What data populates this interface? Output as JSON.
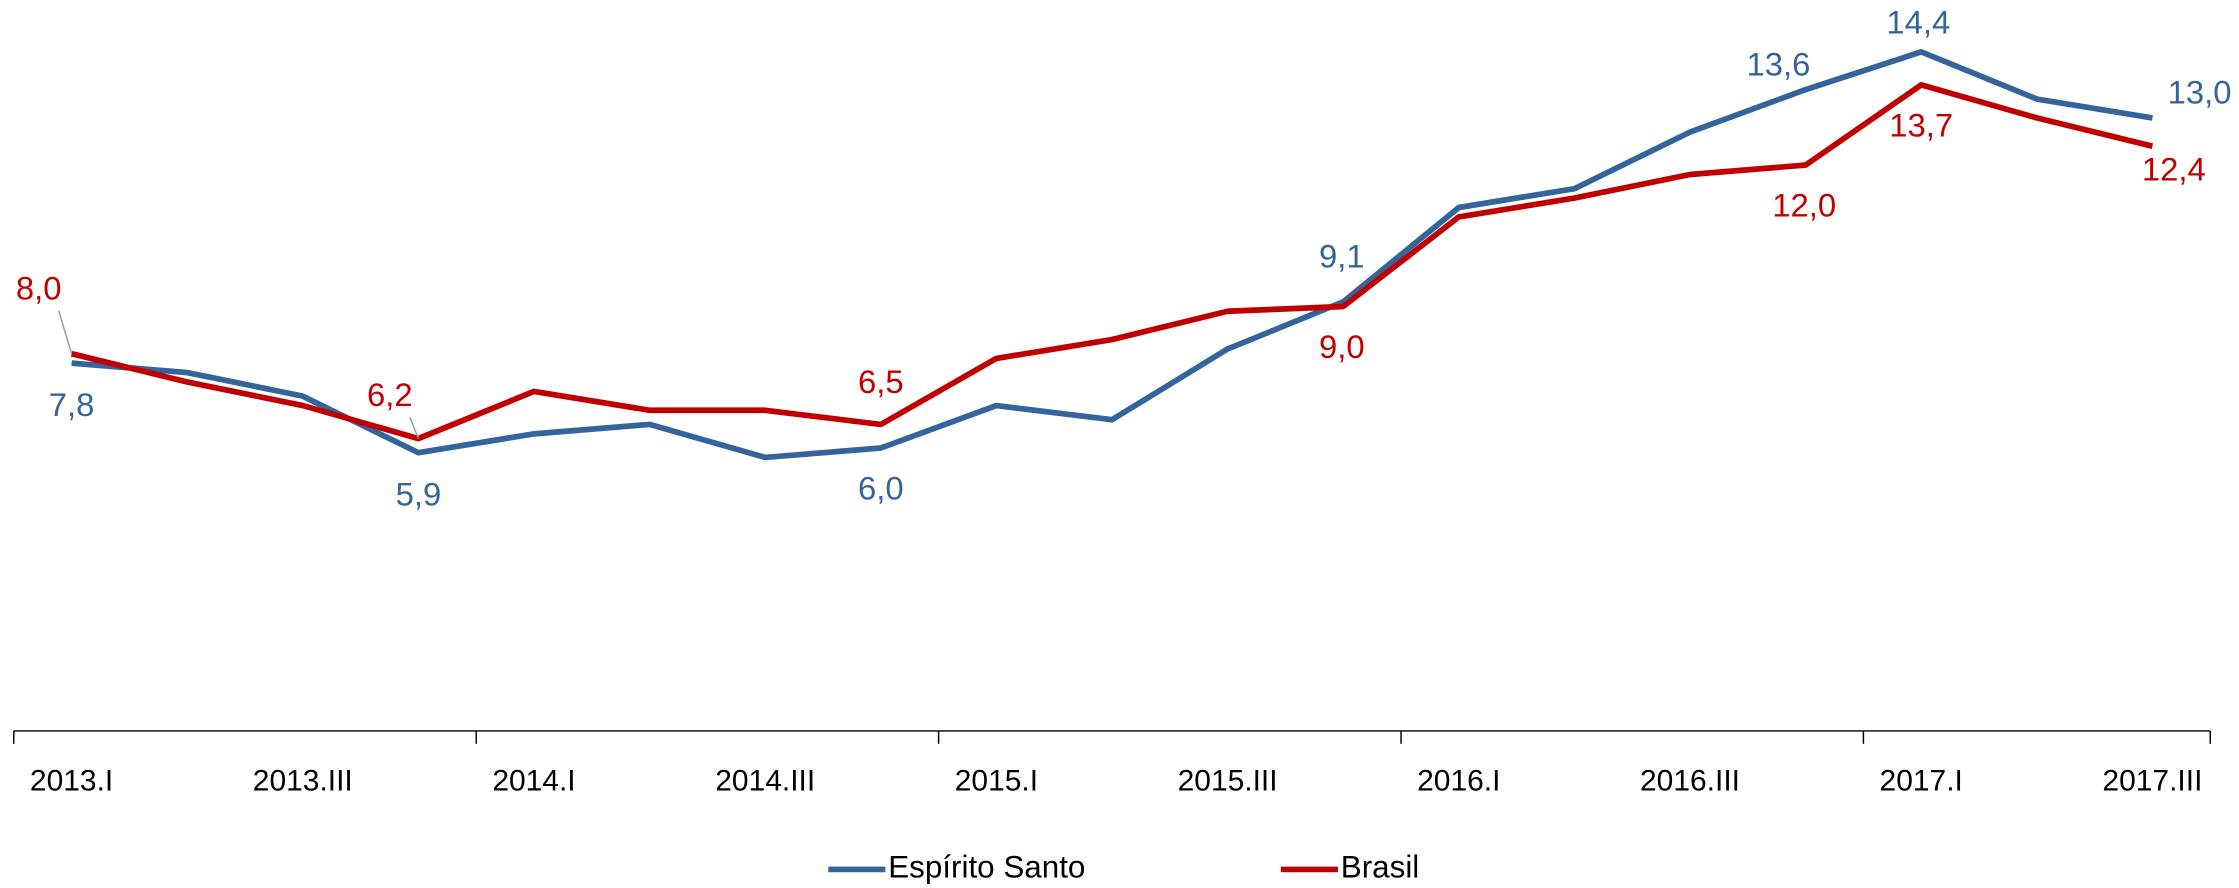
{
  "chart_data": {
    "type": "line",
    "categories": [
      "2013.I",
      null,
      "2013.III",
      null,
      "2014.I",
      null,
      "2014.III",
      null,
      "2015.I",
      null,
      "2015.III",
      null,
      "2016.I",
      null,
      "2016.III",
      null,
      "2017.I",
      null,
      "2017.III"
    ],
    "ylim": [
      0,
      15.5
    ],
    "series": [
      {
        "name": "Espírito Santo",
        "color": "#33649c",
        "values": [
          7.8,
          7.6,
          7.1,
          5.9,
          6.3,
          6.5,
          5.8,
          6.0,
          6.9,
          6.6,
          8.1,
          9.1,
          11.1,
          11.5,
          12.7,
          13.6,
          14.4,
          13.4,
          13.0
        ],
        "value_labels": [
          "7,8",
          null,
          null,
          "5,9",
          null,
          null,
          null,
          "6,0",
          null,
          null,
          null,
          "9,1",
          null,
          null,
          null,
          "13,6",
          "14,4",
          null,
          "13,0"
        ]
      },
      {
        "name": "Brasil",
        "color": "#c00000",
        "values": [
          8.0,
          7.4,
          6.9,
          6.2,
          7.2,
          6.8,
          6.8,
          6.5,
          7.9,
          8.3,
          8.9,
          9.0,
          10.9,
          11.3,
          11.8,
          12.0,
          13.7,
          13.0,
          12.4
        ],
        "value_labels": [
          "8,0",
          null,
          null,
          "6,2",
          null,
          null,
          null,
          "6,5",
          null,
          null,
          null,
          "9,0",
          null,
          null,
          null,
          "12,0",
          "13,7",
          null,
          "12,4"
        ]
      }
    ]
  }
}
